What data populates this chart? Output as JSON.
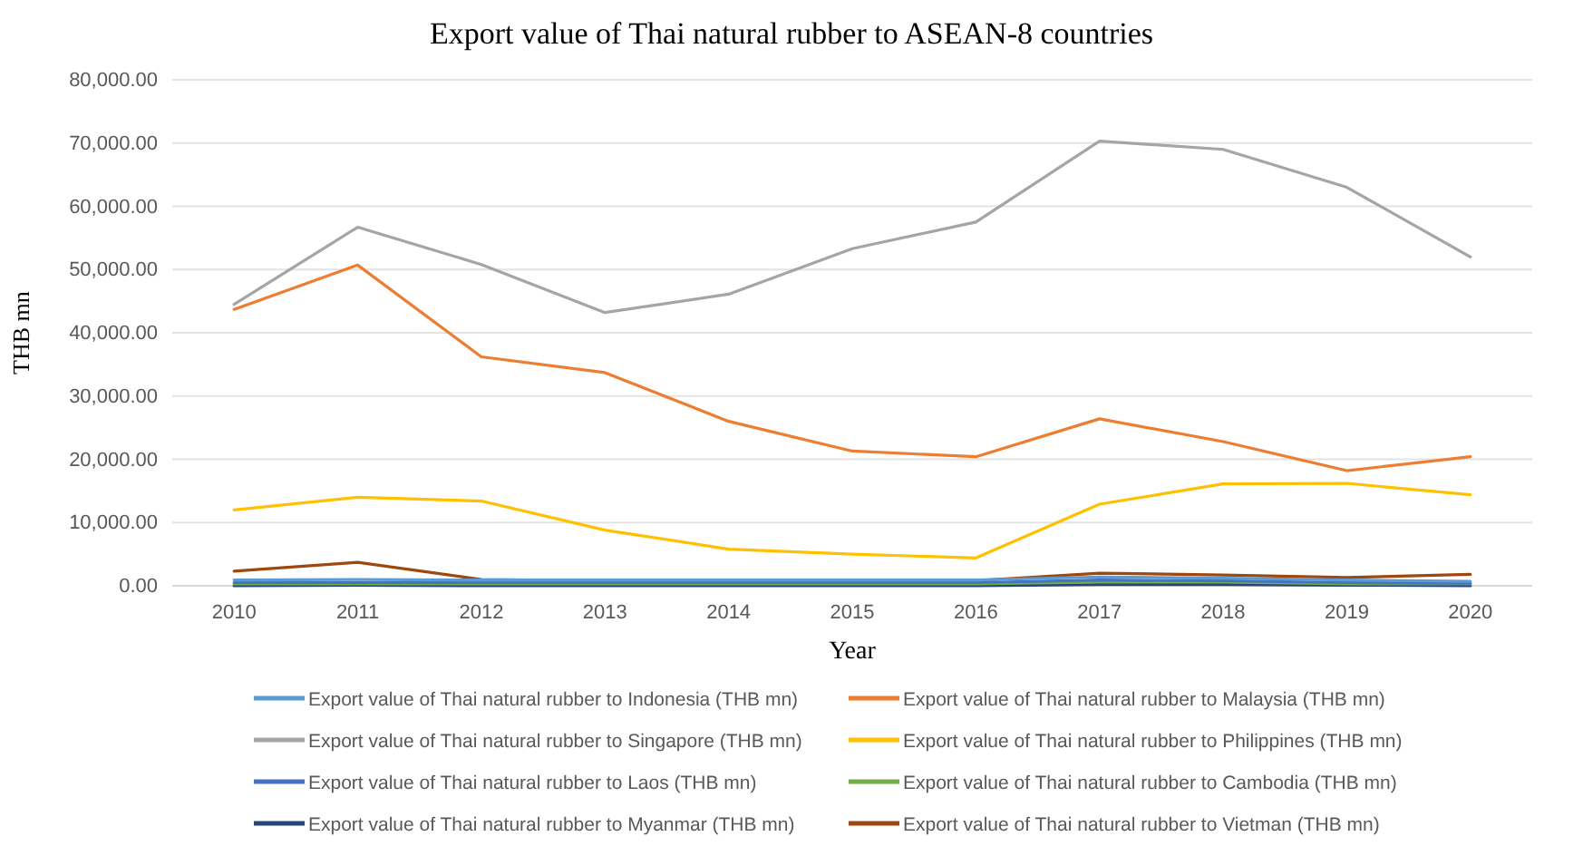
{
  "chart_data": {
    "type": "line",
    "title": "Export value of Thai natural rubber to ASEAN-8 countries",
    "xlabel": "Year",
    "ylabel": "THB mn",
    "categories": [
      "2010",
      "2011",
      "2012",
      "2013",
      "2014",
      "2015",
      "2016",
      "2017",
      "2018",
      "2019",
      "2020"
    ],
    "series": [
      {
        "name": "Export value of Thai natural rubber to Indonesia (THB mn)",
        "color": "#5b9bd5",
        "values": [
          900,
          1000,
          900,
          900,
          900,
          900,
          900,
          1400,
          1200,
          900,
          700
        ]
      },
      {
        "name": "Export value of Thai natural rubber to Malaysia (THB mn)",
        "color": "#ed7d31",
        "values": [
          43700,
          50700,
          36200,
          33700,
          26000,
          21300,
          20400,
          26400,
          22800,
          18200,
          20400
        ]
      },
      {
        "name": "Export value of Thai natural rubber to Singapore (THB mn)",
        "color": "#a5a5a5",
        "values": [
          44500,
          56700,
          50800,
          43200,
          46100,
          53300,
          57500,
          70300,
          69000,
          63000,
          52000
        ]
      },
      {
        "name": "Export value of Thai natural rubber to Philippines (THB mn)",
        "color": "#ffc000",
        "values": [
          12000,
          14000,
          13400,
          8800,
          5800,
          5000,
          4400,
          12900,
          16100,
          16200,
          14400
        ]
      },
      {
        "name": "Export value of Thai natural rubber to Laos (THB mn)",
        "color": "#4472c4",
        "values": [
          500,
          500,
          500,
          500,
          500,
          500,
          500,
          900,
          800,
          500,
          400
        ]
      },
      {
        "name": "Export value of Thai natural rubber to Cambodia (THB mn)",
        "color": "#70ad47",
        "values": [
          300,
          300,
          300,
          300,
          300,
          300,
          300,
          600,
          600,
          300,
          300
        ]
      },
      {
        "name": "Export value of Thai natural rubber to Myanmar (THB mn)",
        "color": "#264478",
        "values": [
          0,
          100,
          0,
          0,
          0,
          0,
          0,
          200,
          200,
          100,
          0
        ]
      },
      {
        "name": "Export value of Thai natural rubber to Vietman (THB mn)",
        "color": "#9e480e",
        "values": [
          2300,
          3700,
          1000,
          800,
          800,
          700,
          800,
          2000,
          1700,
          1300,
          1800
        ]
      }
    ],
    "ylim": [
      0,
      80000
    ],
    "yticks": [
      {
        "value": 0,
        "label": "0.00"
      },
      {
        "value": 10000,
        "label": "10,000.00"
      },
      {
        "value": 20000,
        "label": "20,000.00"
      },
      {
        "value": 30000,
        "label": "30,000.00"
      },
      {
        "value": 40000,
        "label": "40,000.00"
      },
      {
        "value": 50000,
        "label": "50,000.00"
      },
      {
        "value": 60000,
        "label": "60,000.00"
      },
      {
        "value": 70000,
        "label": "70,000.00"
      },
      {
        "value": 80000,
        "label": "80,000.00"
      }
    ],
    "grid": "y",
    "legend": "bottom"
  }
}
